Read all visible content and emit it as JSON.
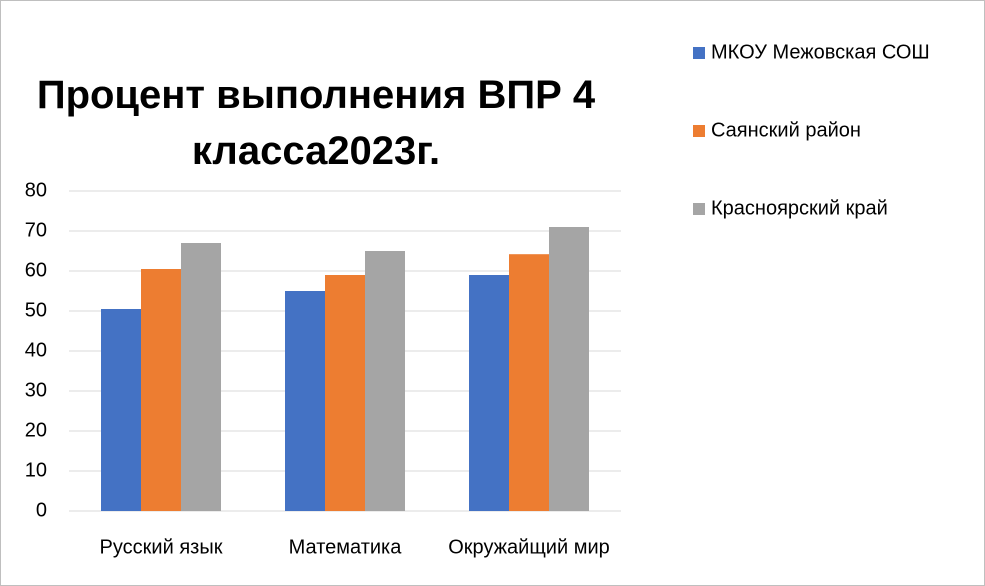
{
  "chart_data": {
    "type": "bar",
    "title": "Процент выполнения ВПР 4 класса2023г.",
    "categories": [
      "Русский язык",
      "Математика",
      "Окружайщий мир"
    ],
    "series": [
      {
        "name": "МКОУ Межовская СОШ",
        "color": "#4472c4",
        "values": [
          50.5,
          55,
          59
        ]
      },
      {
        "name": "Саянский район",
        "color": "#ed7d31",
        "values": [
          60.5,
          59,
          64.2
        ]
      },
      {
        "name": "Красноярский край",
        "color": "#a5a5a5",
        "values": [
          67,
          65,
          71
        ]
      }
    ],
    "ylim": [
      0,
      80
    ],
    "yticks": [
      0,
      10,
      20,
      30,
      40,
      50,
      60,
      70,
      80
    ],
    "grid": true,
    "legend": "right"
  }
}
